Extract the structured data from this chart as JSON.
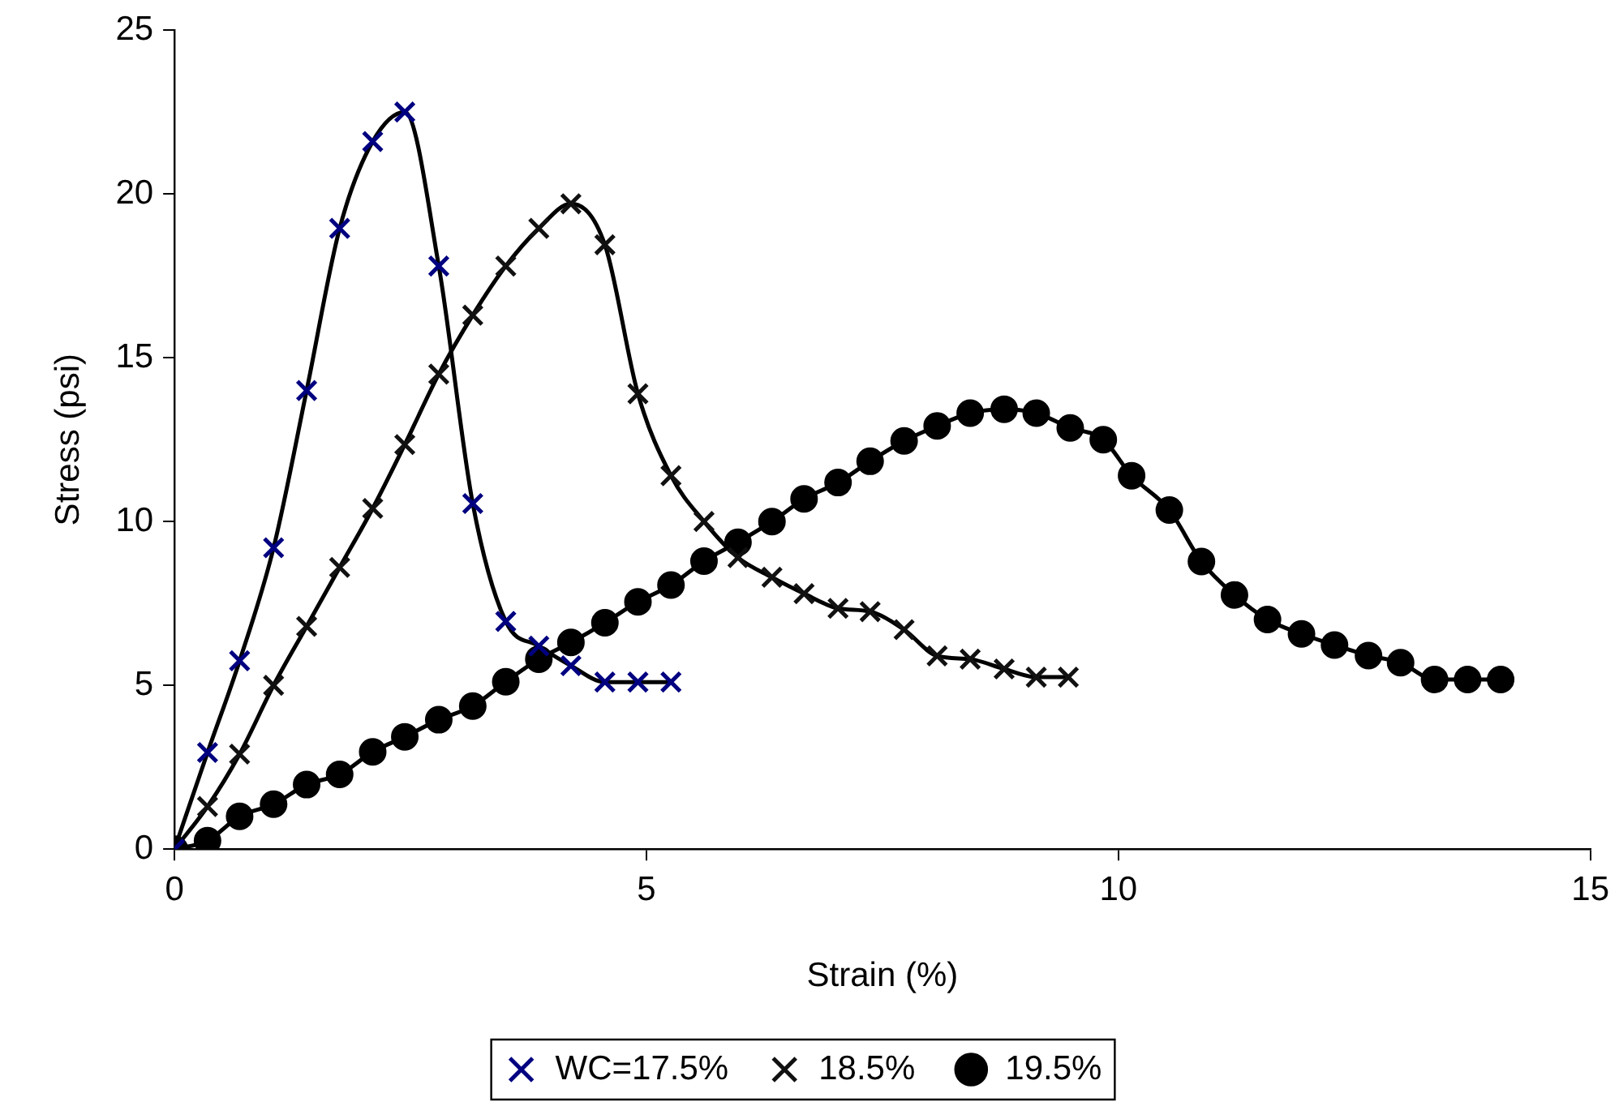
{
  "chart_data": {
    "type": "line",
    "xlabel": "Strain (%)",
    "ylabel": "Stress (psi)",
    "xlim": [
      0,
      15
    ],
    "xticks": [
      0,
      5,
      10,
      15
    ],
    "ylim": [
      0,
      25
    ],
    "yticks": [
      0,
      5,
      10,
      15,
      20,
      25
    ],
    "grid": false,
    "legend": "bottom",
    "series": [
      {
        "name": "WC=17.5%",
        "color": "#000080",
        "marker": "cross",
        "x": [
          0,
          0.35,
          0.69,
          1.05,
          1.4,
          1.75,
          2.1,
          2.44,
          2.8,
          3.16,
          3.51,
          3.86,
          4.2,
          4.56,
          4.91,
          5.26
        ],
        "values": [
          0,
          2.95,
          5.75,
          9.2,
          14,
          18.95,
          21.6,
          22.5,
          17.8,
          10.55,
          6.95,
          6.2,
          5.6,
          5.1,
          5.1,
          5.1
        ]
      },
      {
        "name": "18.5%",
        "color": "#111111",
        "marker": "cross",
        "x": [
          0,
          0.35,
          0.69,
          1.05,
          1.4,
          1.75,
          2.1,
          2.44,
          2.8,
          3.16,
          3.51,
          3.86,
          4.2,
          4.56,
          4.91,
          5.26,
          5.61,
          5.97,
          6.33,
          6.67,
          7.03,
          7.37,
          7.73,
          8.08,
          8.43,
          8.79,
          9.13,
          9.47
        ],
        "values": [
          0,
          1.3,
          2.9,
          5,
          6.8,
          8.6,
          10.4,
          12.35,
          14.5,
          16.3,
          17.8,
          18.95,
          19.7,
          18.45,
          13.9,
          11.4,
          10,
          8.9,
          8.3,
          7.8,
          7.35,
          7.25,
          6.7,
          5.9,
          5.8,
          5.5,
          5.25,
          5.25
        ]
      },
      {
        "name": "19.5%",
        "color": "#000000",
        "marker": "circle",
        "x": [
          0,
          0.35,
          0.69,
          1.05,
          1.4,
          1.75,
          2.1,
          2.44,
          2.8,
          3.16,
          3.51,
          3.86,
          4.2,
          4.56,
          4.91,
          5.26,
          5.61,
          5.97,
          6.33,
          6.67,
          7.03,
          7.37,
          7.73,
          8.08,
          8.43,
          8.79,
          9.13,
          9.49,
          9.84,
          10.14,
          10.54,
          10.88,
          11.23,
          11.58,
          11.94,
          12.29,
          12.65,
          12.99,
          13.35,
          13.7,
          14.05
        ],
        "values": [
          0,
          0.26,
          1,
          1.37,
          1.97,
          2.28,
          2.97,
          3.43,
          3.95,
          4.37,
          5.11,
          5.8,
          6.31,
          6.91,
          7.55,
          8.06,
          8.79,
          9.37,
          10,
          10.69,
          11.19,
          11.84,
          12.46,
          12.92,
          13.31,
          13.43,
          13.31,
          12.86,
          12.5,
          11.4,
          10.35,
          8.78,
          7.76,
          7.01,
          6.57,
          6.23,
          5.91,
          5.69,
          5.18,
          5.18,
          5.18
        ]
      }
    ]
  }
}
